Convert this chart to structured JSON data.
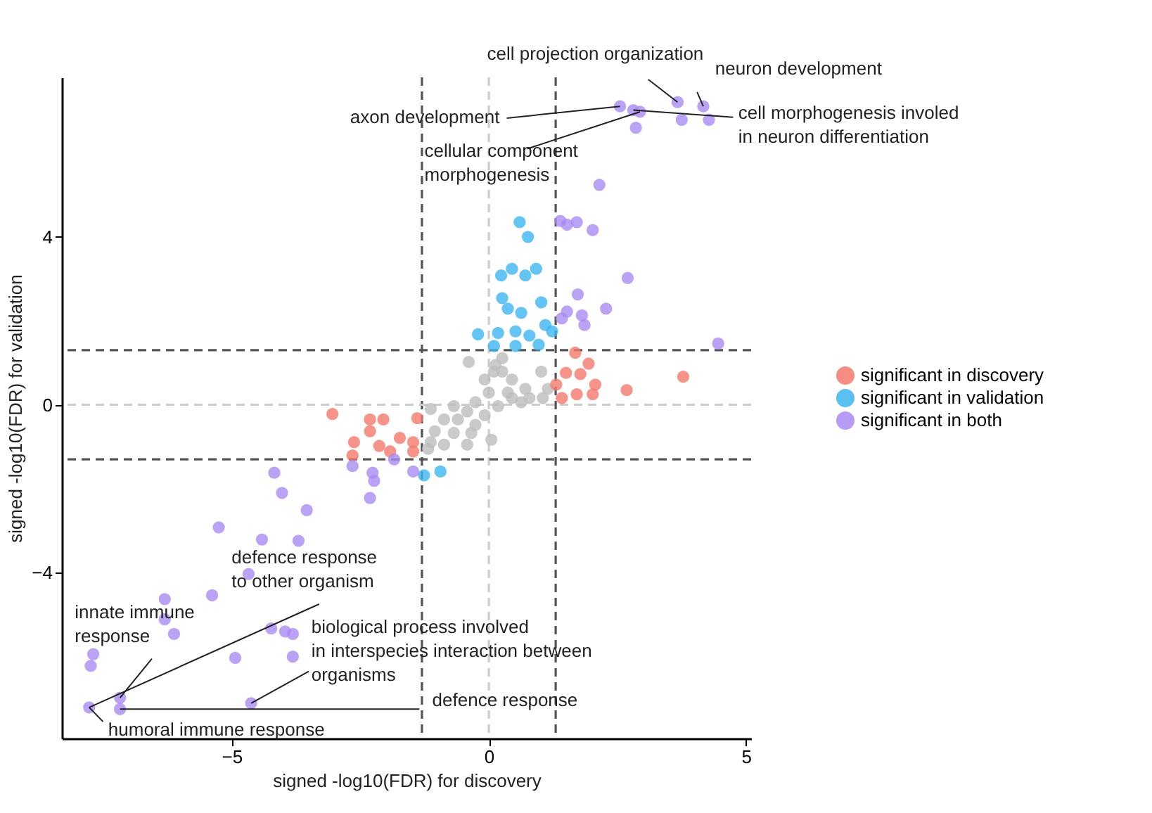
{
  "chart_data": {
    "type": "scatter",
    "xlabel": "signed -log10(FDR) for discovery",
    "ylabel": "signed -log10(FDR) for validation",
    "xlim": [
      -8.3,
      5.1
    ],
    "ylim": [
      -7.95,
      7.8
    ],
    "xticks": [
      -5,
      0,
      5
    ],
    "yticks": [
      -4,
      0,
      4
    ],
    "grid": false,
    "legend": "right",
    "marker": "circle",
    "series": [
      {
        "color": "#bdbdbd",
        "x": [
          -0.39,
          0.13,
          0.26,
          1.02,
          -0.08,
          0.45,
          0.0,
          0.37,
          0.71,
          1.05,
          -0.26,
          0.18,
          0.63,
          -0.68,
          -0.42,
          -0.08,
          -1.13,
          -0.87,
          -0.6,
          -0.26,
          -1.05,
          -0.68,
          -0.34,
          -1.13,
          -0.87,
          0.05,
          -0.42,
          -1.18,
          0.45,
          0.79,
          1.15,
          0.1,
          0.26
        ],
        "values": [
          1.02,
          0.95,
          0.79,
          0.79,
          0.6,
          0.6,
          0.29,
          0.29,
          0.38,
          0.16,
          0.06,
          -0.03,
          0.06,
          -0.03,
          -0.16,
          -0.25,
          -0.1,
          -0.35,
          -0.35,
          -0.48,
          -0.63,
          -0.67,
          -0.67,
          -0.89,
          -0.95,
          -0.83,
          -0.95,
          -1.05,
          0.16,
          0.16,
          0.38,
          0.79,
          1.11
        ]
      },
      {
        "name": "significant in discovery",
        "color": "#f4796d",
        "x": [
          -3.04,
          -2.31,
          -2.05,
          -2.31,
          -2.62,
          -2.13,
          -1.73,
          -1.47,
          -1.39,
          -2.65,
          -1.92,
          -1.47,
          1.68,
          1.94,
          1.78,
          1.5,
          2.07,
          1.42,
          1.71,
          2.02,
          2.68,
          3.78,
          1.31
        ],
        "values": [
          -0.22,
          -0.35,
          -0.35,
          -0.63,
          -0.89,
          -0.98,
          -0.79,
          -0.89,
          -0.32,
          -1.21,
          -1.11,
          -1.11,
          1.24,
          0.98,
          0.73,
          0.76,
          0.48,
          0.16,
          0.25,
          0.25,
          0.35,
          0.67,
          0.48
        ]
      },
      {
        "name": "significant in validation",
        "color": "#3db5f0",
        "x": [
          0.6,
          0.76,
          0.24,
          0.45,
          0.71,
          0.92,
          0.26,
          0.37,
          0.63,
          1.02,
          1.1,
          -0.21,
          0.18,
          0.52,
          0.79,
          1.23,
          0.1,
          0.52,
          0.97,
          -0.94,
          -1.26
        ],
        "values": [
          4.35,
          4.0,
          3.08,
          3.24,
          3.08,
          3.24,
          2.54,
          2.29,
          2.19,
          2.44,
          1.9,
          1.68,
          1.71,
          1.75,
          1.65,
          1.75,
          1.4,
          1.4,
          1.43,
          -1.59,
          -1.68
        ]
      },
      {
        "name": "significant in both",
        "color": "#a98bf2",
        "x": [
          2.55,
          2.81,
          2.94,
          2.86,
          3.67,
          3.75,
          4.17,
          4.28,
          2.15,
          1.39,
          1.52,
          1.71,
          2.02,
          2.7,
          1.73,
          2.28,
          1.52,
          1.42,
          1.81,
          1.86,
          4.46,
          -4.17,
          -4.02,
          -3.54,
          -5.25,
          -4.41,
          -3.7,
          -4.67,
          -5.38,
          -6.3,
          -6.3,
          -6.12,
          -4.23,
          -3.96,
          -3.81,
          -7.69,
          -7.74,
          -4.93,
          -3.81,
          -7.77,
          -7.17,
          -7.17,
          -4.62,
          -2.65,
          -2.26,
          -2.23,
          -2.31,
          -1.84,
          -1.47
        ],
        "values": [
          7.11,
          7.02,
          6.98,
          6.6,
          7.21,
          6.79,
          7.11,
          6.79,
          5.24,
          4.38,
          4.29,
          4.35,
          4.16,
          3.02,
          2.63,
          2.29,
          2.22,
          2.06,
          2.13,
          1.9,
          1.46,
          -1.62,
          -2.1,
          -2.51,
          -2.92,
          -3.21,
          -3.24,
          -4.03,
          -4.54,
          -4.63,
          -5.11,
          -5.46,
          -5.33,
          -5.4,
          -5.46,
          -5.94,
          -6.22,
          -6.03,
          -6.0,
          -7.21,
          -6.98,
          -7.25,
          -7.11,
          -1.46,
          -1.62,
          -1.81,
          -2.22,
          -1.3,
          -1.59
        ]
      }
    ],
    "ref_lines": [
      {
        "axis": "x",
        "value": -1.3,
        "color": "#555555",
        "line_style": "dashed"
      },
      {
        "axis": "x",
        "value": 0,
        "color": "#cccccc",
        "line_style": "dashed"
      },
      {
        "axis": "x",
        "value": 1.3,
        "color": "#555555",
        "line_style": "dashed"
      },
      {
        "axis": "y",
        "value": -1.3,
        "color": "#555555",
        "line_style": "dashed"
      },
      {
        "axis": "y",
        "value": 0,
        "color": "#cccccc",
        "line_style": "dashed"
      },
      {
        "axis": "y",
        "value": 1.3,
        "color": "#555555",
        "line_style": "dashed"
      }
    ],
    "annotations": [
      {
        "text": "cell projection organization",
        "x": 3.67,
        "y": 7.21
      },
      {
        "text": "neuron development",
        "x": 4.17,
        "y": 7.11
      },
      {
        "text": "axon development",
        "x": 2.55,
        "y": 7.11
      },
      {
        "text": "cellular component\nmorphogenesis",
        "x": 2.94,
        "y": 6.98
      },
      {
        "text": "cell morphogenesis involed\nin neuron differentiation",
        "x": 2.81,
        "y": 7.02
      },
      {
        "text": "defence response\nto other organism",
        "x": -7.77,
        "y": -7.21
      },
      {
        "text": "innate immune\nresponse",
        "x": -7.17,
        "y": -6.98
      },
      {
        "text": "biological process involved\nin interspecies interaction between\norganisms",
        "x": -4.62,
        "y": -7.11
      },
      {
        "text": "defence response",
        "x": -7.17,
        "y": -7.25
      },
      {
        "text": "humoral immune response",
        "x": -7.77,
        "y": -7.21
      }
    ]
  }
}
